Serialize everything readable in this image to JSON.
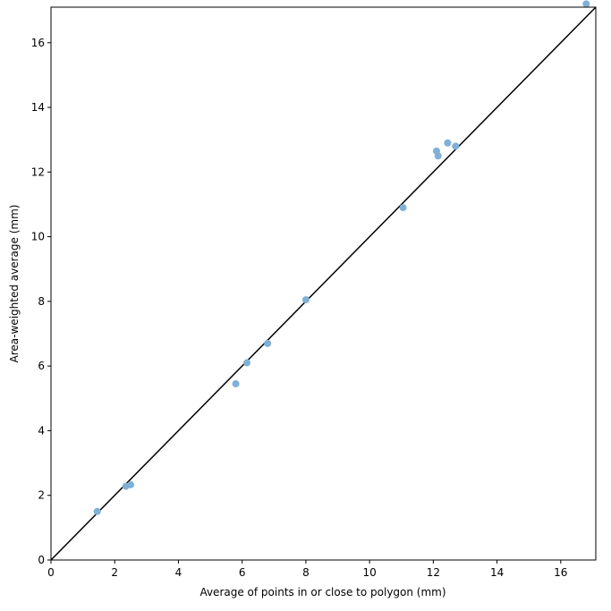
{
  "chart_data": {
    "type": "scatter",
    "x_label": "Average of points in or close to polygon (mm)",
    "y_label": "Area-weighted average (mm)",
    "x": [
      1.45,
      2.35,
      2.5,
      5.8,
      6.15,
      6.8,
      8.0,
      11.05,
      12.1,
      12.15,
      12.45,
      12.7,
      16.8
    ],
    "values": [
      1.5,
      2.28,
      2.33,
      5.45,
      6.1,
      6.7,
      8.05,
      10.9,
      12.65,
      12.5,
      12.9,
      12.8,
      17.2
    ],
    "color": "#7fb0d6",
    "identity_line": true,
    "line_color": "#000000",
    "xlim": [
      0,
      17.1
    ],
    "ylim": [
      0,
      17.1
    ],
    "xticks": [
      0,
      2,
      4,
      6,
      8,
      10,
      12,
      14,
      16
    ],
    "yticks": [
      0,
      2,
      4,
      6,
      8,
      10,
      12,
      14,
      16
    ]
  }
}
